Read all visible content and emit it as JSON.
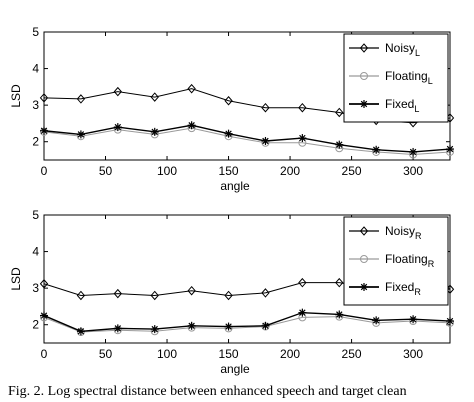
{
  "chart_data": [
    {
      "type": "line",
      "xlabel": "angle",
      "ylabel": "LSD",
      "xlim": [
        0,
        330
      ],
      "ylim": [
        1.5,
        5
      ],
      "xticks": [
        0,
        50,
        100,
        150,
        200,
        250,
        300
      ],
      "yticks": [
        2,
        3,
        4,
        5
      ],
      "grid": false,
      "legend": "top-right",
      "x": [
        0,
        30,
        60,
        90,
        120,
        150,
        180,
        210,
        240,
        270,
        300,
        330
      ],
      "series": [
        {
          "name": "Noisy",
          "subscript": "L",
          "marker": "diamond",
          "color": "#000000",
          "values": [
            3.2,
            3.17,
            3.37,
            3.22,
            3.45,
            3.12,
            2.93,
            2.93,
            2.8,
            2.58,
            2.52,
            2.65
          ]
        },
        {
          "name": "Floating",
          "subscript": "L",
          "marker": "circle",
          "color": "#9a9a9a",
          "values": [
            2.27,
            2.15,
            2.33,
            2.2,
            2.37,
            2.15,
            1.97,
            1.97,
            1.82,
            1.72,
            1.65,
            1.72
          ]
        },
        {
          "name": "Fixed",
          "subscript": "L",
          "marker": "star",
          "color": "#000000",
          "values": [
            2.3,
            2.2,
            2.4,
            2.27,
            2.45,
            2.22,
            2.02,
            2.1,
            1.92,
            1.78,
            1.72,
            1.8
          ]
        }
      ]
    },
    {
      "type": "line",
      "xlabel": "angle",
      "ylabel": "LSD",
      "xlim": [
        0,
        330
      ],
      "ylim": [
        1.5,
        5
      ],
      "xticks": [
        0,
        50,
        100,
        150,
        200,
        250,
        300
      ],
      "yticks": [
        2,
        3,
        4,
        5
      ],
      "grid": false,
      "legend": "top-right",
      "x": [
        0,
        30,
        60,
        90,
        120,
        150,
        180,
        210,
        240,
        270,
        300,
        330
      ],
      "series": [
        {
          "name": "Noisy",
          "subscript": "R",
          "marker": "diamond",
          "color": "#000000",
          "values": [
            3.12,
            2.8,
            2.85,
            2.8,
            2.93,
            2.8,
            2.87,
            3.15,
            3.15,
            2.98,
            3.0,
            2.97
          ]
        },
        {
          "name": "Floating",
          "subscript": "R",
          "marker": "circle",
          "color": "#9a9a9a",
          "values": [
            2.2,
            1.8,
            1.85,
            1.82,
            1.92,
            1.9,
            1.95,
            2.2,
            2.22,
            2.05,
            2.1,
            2.05
          ]
        },
        {
          "name": "Fixed",
          "subscript": "R",
          "marker": "star",
          "color": "#000000",
          "values": [
            2.25,
            1.82,
            1.9,
            1.88,
            1.97,
            1.95,
            1.97,
            2.33,
            2.28,
            2.12,
            2.15,
            2.1
          ]
        }
      ]
    }
  ],
  "caption": "Fig. 2. Log spectral distance between enhanced speech and target clean"
}
